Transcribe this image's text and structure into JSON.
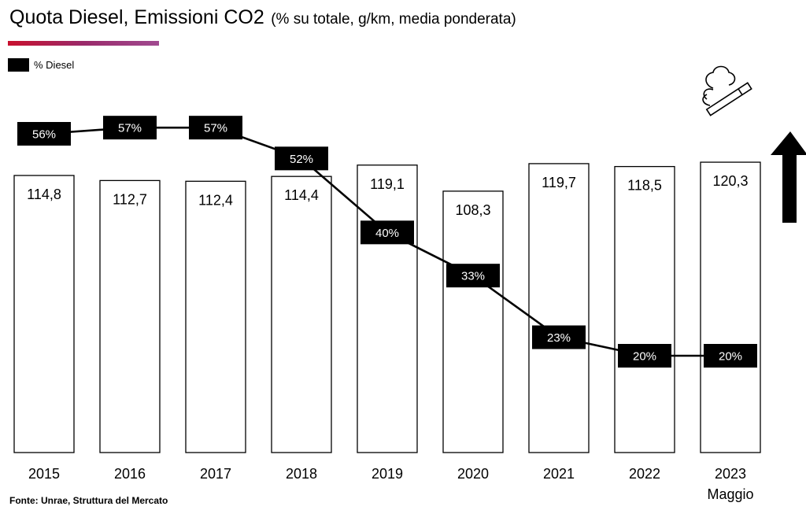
{
  "header": {
    "title": "Quota Diesel, Emissioni CO2",
    "subtitle": "(% su totale, g/km, media ponderata)"
  },
  "legend": {
    "label": "% Diesel"
  },
  "source": "Fonte: Unrae, Struttura del Mercato",
  "chart_data": {
    "type": "bar",
    "categories": [
      "2015",
      "2016",
      "2017",
      "2018",
      "2019",
      "2020",
      "2021",
      "2022",
      "2023"
    ],
    "category_sublabels": [
      "",
      "",
      "",
      "",
      "",
      "",
      "",
      "",
      "Maggio"
    ],
    "series": [
      {
        "kind": "bar",
        "values": [
          114.8,
          112.7,
          112.4,
          114.4,
          119.1,
          108.3,
          119.7,
          118.5,
          120.3
        ],
        "labels": [
          "114,8",
          "112,7",
          "112,4",
          "114,4",
          "119,1",
          "108,3",
          "119,7",
          "118,5",
          "120,3"
        ]
      },
      {
        "name": "% Diesel",
        "kind": "line",
        "values": [
          56,
          57,
          57,
          52,
          40,
          33,
          23,
          20,
          20
        ],
        "labels": [
          "56%",
          "57%",
          "57%",
          "52%",
          "40%",
          "33%",
          "23%",
          "20%",
          "20%"
        ]
      }
    ],
    "ylim_bars": [
      0,
      127
    ],
    "ylim_line": [
      0,
      64
    ],
    "grid": false,
    "legend_position": "top-left",
    "colors": {
      "bar_fill": "#ffffff",
      "bar_stroke": "#000000",
      "line": "#000000",
      "label_box": "#000000",
      "label_text": "#ffffff",
      "accent": "#c8102e"
    },
    "annotations": [
      {
        "kind": "icon",
        "name": "smoking-cigarette-icon",
        "category": "2023"
      },
      {
        "kind": "icon",
        "name": "up-arrow-icon",
        "category": "2023"
      }
    ]
  }
}
